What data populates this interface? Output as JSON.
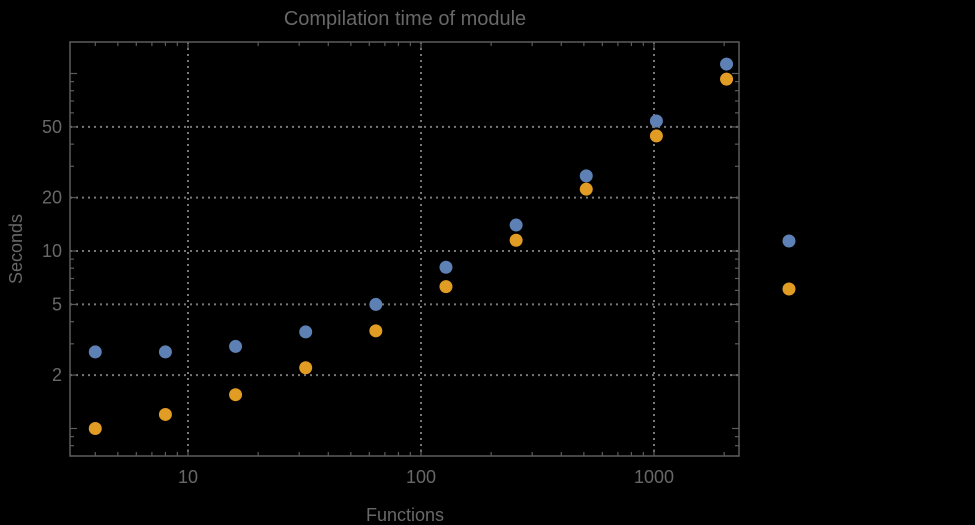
{
  "colors": {
    "background": "#000000",
    "text": "#686868",
    "frame": "#5c5c5c",
    "gridline": "#787878",
    "series1": "#5E81B5",
    "series2": "#E19C24"
  },
  "chart_data": {
    "type": "scatter",
    "title": "Compilation time of module",
    "xlabel": "Functions",
    "ylabel": "Seconds",
    "x_scale": "log",
    "y_scale": "log",
    "xlim": [
      3,
      2320
    ],
    "ylim": [
      0.7,
      150
    ],
    "grid": "dotted lines at labeled ticks only",
    "marker": "filled circle",
    "x": [
      4,
      8,
      16,
      32,
      64,
      128,
      256,
      512,
      1024,
      2048
    ],
    "series": [
      {
        "name": "series-1",
        "color": "#5E81B5",
        "values": [
          2.7,
          2.7,
          2.9,
          3.5,
          5.0,
          8.1,
          14.0,
          26.5,
          54,
          113
        ]
      },
      {
        "name": "series-2",
        "color": "#E19C24",
        "values": [
          1.0,
          1.2,
          1.55,
          2.2,
          3.55,
          6.3,
          11.5,
          22.3,
          44.5,
          93
        ]
      }
    ],
    "x_axis": {
      "labeled_ticks": [
        10,
        100,
        1000
      ],
      "tick_labels": [
        "10",
        "100",
        "1000"
      ],
      "minor_ticks": [
        4,
        5,
        6,
        7,
        8,
        9,
        20,
        30,
        40,
        50,
        60,
        70,
        80,
        90,
        200,
        300,
        400,
        500,
        600,
        700,
        800,
        900,
        2000
      ]
    },
    "y_axis": {
      "labeled_ticks": [
        2,
        5,
        10,
        20,
        50
      ],
      "tick_labels": [
        "2",
        "5",
        "10",
        "20",
        "50"
      ],
      "unlabeled_major_ticks": [
        1,
        100
      ],
      "minor_ticks": [
        0.7,
        0.8,
        0.9,
        3,
        4,
        6,
        7,
        8,
        9,
        30,
        40,
        60,
        70,
        80,
        90
      ]
    },
    "legend": {
      "position": "outside-right",
      "entries": [
        {
          "label": "",
          "color": "#5E81B5"
        },
        {
          "label": "",
          "color": "#E19C24"
        }
      ]
    }
  }
}
